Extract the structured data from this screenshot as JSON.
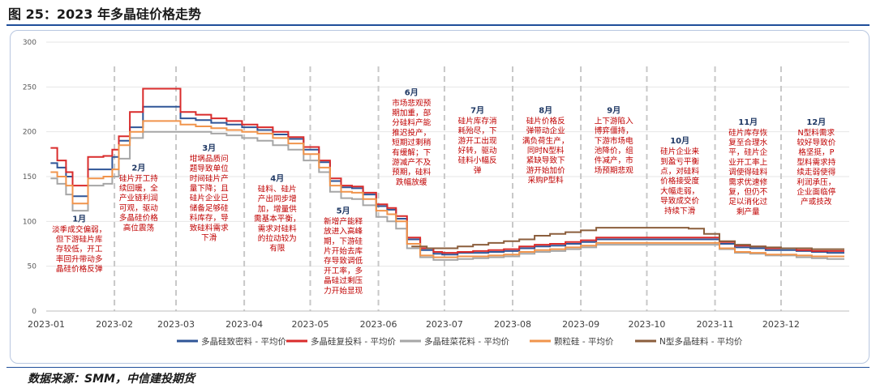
{
  "page_title": "图 25：2023 年多晶硅价格走势",
  "source": "数据来源：SMM，中信建投期货",
  "colors": {
    "dense": "#2f5597",
    "recharge": "#d92b2b",
    "cauliflower": "#a6a6a6",
    "granular": "#f0944c",
    "ntype": "#8b5e3c",
    "annotation_text": "#c00000",
    "month_label": "#1f3864",
    "title_rule": "#1f4e9a"
  },
  "chart_data": {
    "type": "line",
    "ylim": [
      0,
      300
    ],
    "yticks": [
      "0",
      "50",
      "100",
      "150",
      "200",
      "250",
      "300"
    ],
    "x_range": [
      "2023-01-01",
      "2024-01-01"
    ],
    "xticks": [
      {
        "date": "2023-01-01",
        "label": "2023-01"
      },
      {
        "date": "2023-02-01",
        "label": "2023-02"
      },
      {
        "date": "2023-03-01",
        "label": "2023-03"
      },
      {
        "date": "2023-04-01",
        "label": "2023-04"
      },
      {
        "date": "2023-05-01",
        "label": "2023-05"
      },
      {
        "date": "2023-06-01",
        "label": "2023-06"
      },
      {
        "date": "2023-07-01",
        "label": "2023-07"
      },
      {
        "date": "2023-08-01",
        "label": "2023-08"
      },
      {
        "date": "2023-09-01",
        "label": "2023-09"
      },
      {
        "date": "2023-10-01",
        "label": "2023-10"
      },
      {
        "date": "2023-11-01",
        "label": "2023-11"
      },
      {
        "date": "2023-12-01",
        "label": "2023-12"
      }
    ],
    "month_dividers": [
      "2023-02-01",
      "2023-03-01",
      "2023-04-01",
      "2023-05-01",
      "2023-06-01",
      "2023-07-01",
      "2023-08-01",
      "2023-09-01",
      "2023-10-01",
      "2023-11-01",
      "2023-12-01"
    ],
    "legend_position": "bottom",
    "series": [
      {
        "name": "多晶硅致密料 - 平均价",
        "key": "dense",
        "x": [
          "2023-01-03",
          "2023-01-06",
          "2023-01-10",
          "2023-01-13",
          "2023-01-17",
          "2023-01-20",
          "2023-01-27",
          "2023-01-31",
          "2023-02-03",
          "2023-02-08",
          "2023-02-14",
          "2023-02-20",
          "2023-02-24",
          "2023-03-03",
          "2023-03-10",
          "2023-03-17",
          "2023-03-24",
          "2023-03-31",
          "2023-04-07",
          "2023-04-14",
          "2023-04-21",
          "2023-04-28",
          "2023-05-05",
          "2023-05-10",
          "2023-05-15",
          "2023-05-20",
          "2023-05-25",
          "2023-05-31",
          "2023-06-05",
          "2023-06-09",
          "2023-06-14",
          "2023-06-20",
          "2023-06-26",
          "2023-06-30",
          "2023-07-07",
          "2023-07-14",
          "2023-07-21",
          "2023-07-28",
          "2023-08-04",
          "2023-08-11",
          "2023-08-18",
          "2023-08-25",
          "2023-09-01",
          "2023-09-08",
          "2023-09-15",
          "2023-09-22",
          "2023-10-06",
          "2023-10-13",
          "2023-10-20",
          "2023-10-27",
          "2023-11-03",
          "2023-11-10",
          "2023-11-17",
          "2023-11-24",
          "2023-12-01",
          "2023-12-08",
          "2023-12-15",
          "2023-12-22",
          "2023-12-29"
        ],
        "y": [
          165,
          160,
          150,
          128,
          128,
          158,
          158,
          172,
          190,
          205,
          228,
          228,
          228,
          215,
          213,
          210,
          208,
          205,
          202,
          197,
          192,
          180,
          166,
          145,
          138,
          137,
          130,
          117,
          113,
          103,
          80,
          68,
          64,
          63,
          65,
          65,
          66,
          67,
          70,
          72,
          73,
          75,
          77,
          80,
          80,
          80,
          80,
          80,
          80,
          80,
          75,
          71,
          70,
          68,
          68,
          67,
          66,
          65,
          65
        ]
      },
      {
        "name": "多晶硅复投料 - 平均价",
        "key": "recharge",
        "x": [
          "2023-01-03",
          "2023-01-06",
          "2023-01-10",
          "2023-01-13",
          "2023-01-17",
          "2023-01-20",
          "2023-01-27",
          "2023-01-31",
          "2023-02-03",
          "2023-02-08",
          "2023-02-14",
          "2023-02-20",
          "2023-02-24",
          "2023-03-03",
          "2023-03-10",
          "2023-03-17",
          "2023-03-24",
          "2023-03-31",
          "2023-04-07",
          "2023-04-14",
          "2023-04-21",
          "2023-04-28",
          "2023-05-05",
          "2023-05-10",
          "2023-05-15",
          "2023-05-20",
          "2023-05-25",
          "2023-05-31",
          "2023-06-05",
          "2023-06-09",
          "2023-06-14",
          "2023-06-20",
          "2023-06-26",
          "2023-06-30",
          "2023-07-07",
          "2023-07-14",
          "2023-07-21",
          "2023-07-28",
          "2023-08-04",
          "2023-08-11",
          "2023-08-18",
          "2023-08-25",
          "2023-09-01",
          "2023-09-08",
          "2023-09-15",
          "2023-09-22",
          "2023-10-06",
          "2023-10-13",
          "2023-10-20",
          "2023-10-27",
          "2023-11-03",
          "2023-11-10",
          "2023-11-17",
          "2023-11-24",
          "2023-12-01",
          "2023-12-08",
          "2023-12-15",
          "2023-12-22",
          "2023-12-29"
        ],
        "y": [
          182,
          168,
          155,
          140,
          140,
          172,
          173,
          180,
          195,
          222,
          248,
          248,
          248,
          222,
          219,
          215,
          212,
          208,
          205,
          200,
          194,
          183,
          168,
          148,
          140,
          139,
          132,
          119,
          115,
          106,
          82,
          70,
          66,
          65,
          66,
          67,
          68,
          69,
          72,
          74,
          75,
          77,
          79,
          82,
          82,
          82,
          82,
          82,
          82,
          82,
          77,
          73,
          72,
          70,
          70,
          68,
          67,
          67,
          67
        ]
      },
      {
        "name": "多晶硅菜花料 - 平均价",
        "key": "cauliflower",
        "x": [
          "2023-01-03",
          "2023-01-06",
          "2023-01-10",
          "2023-01-13",
          "2023-01-17",
          "2023-01-20",
          "2023-01-27",
          "2023-01-31",
          "2023-02-03",
          "2023-02-08",
          "2023-02-14",
          "2023-02-20",
          "2023-02-24",
          "2023-03-03",
          "2023-03-10",
          "2023-03-17",
          "2023-03-24",
          "2023-03-31",
          "2023-04-07",
          "2023-04-14",
          "2023-04-21",
          "2023-04-28",
          "2023-05-05",
          "2023-05-10",
          "2023-05-15",
          "2023-05-20",
          "2023-05-25",
          "2023-05-31",
          "2023-06-05",
          "2023-06-09",
          "2023-06-14",
          "2023-06-20",
          "2023-06-26",
          "2023-06-30",
          "2023-07-07",
          "2023-07-14",
          "2023-07-21",
          "2023-07-28",
          "2023-08-04",
          "2023-08-11",
          "2023-08-18",
          "2023-08-25",
          "2023-09-01",
          "2023-09-08",
          "2023-09-15",
          "2023-09-22",
          "2023-10-06",
          "2023-10-13",
          "2023-10-20",
          "2023-10-27",
          "2023-11-03",
          "2023-11-10",
          "2023-11-17",
          "2023-11-24",
          "2023-12-01",
          "2023-12-08",
          "2023-12-15",
          "2023-12-22",
          "2023-12-29"
        ],
        "y": [
          148,
          142,
          130,
          112,
          112,
          140,
          142,
          150,
          170,
          193,
          200,
          200,
          200,
          200,
          200,
          198,
          196,
          193,
          190,
          185,
          180,
          168,
          155,
          133,
          126,
          125,
          118,
          105,
          100,
          92,
          70,
          60,
          57,
          57,
          58,
          59,
          60,
          61,
          64,
          66,
          67,
          69,
          71,
          74,
          74,
          74,
          74,
          74,
          74,
          74,
          69,
          65,
          64,
          62,
          62,
          60,
          59,
          58,
          58
        ]
      },
      {
        "name": "颗粒硅 - 平均价",
        "key": "granular",
        "x": [
          "2023-01-03",
          "2023-01-06",
          "2023-01-10",
          "2023-01-13",
          "2023-01-17",
          "2023-01-20",
          "2023-01-27",
          "2023-01-31",
          "2023-02-03",
          "2023-02-08",
          "2023-02-14",
          "2023-02-20",
          "2023-02-24",
          "2023-03-03",
          "2023-03-10",
          "2023-03-17",
          "2023-03-24",
          "2023-03-31",
          "2023-04-07",
          "2023-04-14",
          "2023-04-21",
          "2023-04-28",
          "2023-05-05",
          "2023-05-10",
          "2023-05-15",
          "2023-05-20",
          "2023-05-25",
          "2023-05-31",
          "2023-06-05",
          "2023-06-09",
          "2023-06-14",
          "2023-06-20",
          "2023-06-26",
          "2023-06-30",
          "2023-07-07",
          "2023-07-14",
          "2023-07-21",
          "2023-07-28",
          "2023-08-04",
          "2023-08-11",
          "2023-08-18",
          "2023-08-25",
          "2023-09-01",
          "2023-09-08",
          "2023-09-15",
          "2023-09-22",
          "2023-10-06",
          "2023-10-13",
          "2023-10-20",
          "2023-10-27",
          "2023-11-03",
          "2023-11-10",
          "2023-11-17",
          "2023-11-24",
          "2023-12-01",
          "2023-12-08",
          "2023-12-15",
          "2023-12-22",
          "2023-12-29"
        ],
        "y": [
          155,
          150,
          140,
          120,
          120,
          148,
          150,
          158,
          185,
          200,
          212,
          212,
          212,
          208,
          206,
          204,
          202,
          200,
          198,
          193,
          187,
          175,
          160,
          140,
          133,
          132,
          125,
          112,
          108,
          100,
          75,
          62,
          60,
          60,
          61,
          61,
          62,
          63,
          66,
          68,
          69,
          71,
          73,
          76,
          76,
          76,
          76,
          76,
          76,
          76,
          70,
          66,
          65,
          63,
          63,
          62,
          61,
          61,
          61
        ]
      },
      {
        "name": "N型多晶硅料 - 平均价",
        "key": "ntype",
        "x": [
          "2023-06-16",
          "2023-06-23",
          "2023-06-30",
          "2023-07-07",
          "2023-07-14",
          "2023-07-21",
          "2023-07-28",
          "2023-08-04",
          "2023-08-11",
          "2023-08-18",
          "2023-08-25",
          "2023-09-01",
          "2023-09-08",
          "2023-09-15",
          "2023-09-22",
          "2023-09-29",
          "2023-10-06",
          "2023-10-13",
          "2023-10-20",
          "2023-10-27",
          "2023-11-03",
          "2023-11-10",
          "2023-11-17",
          "2023-11-24",
          "2023-12-01",
          "2023-12-08",
          "2023-12-15",
          "2023-12-22",
          "2023-12-29"
        ],
        "y": [
          72,
          70,
          70,
          72,
          74,
          76,
          78,
          80,
          84,
          86,
          88,
          90,
          93,
          93,
          93,
          93,
          93,
          93,
          92,
          86,
          78,
          74,
          72,
          71,
          70,
          70,
          69,
          69,
          69
        ]
      }
    ],
    "annotations": [
      {
        "month": "1月",
        "text": [
          "淡季成交偏弱，",
          "但下游硅片库",
          "存较低，开工",
          "率回升带动多",
          "晶硅价格反弹"
        ],
        "date": "2023-01-16",
        "y": 100
      },
      {
        "month": "2月",
        "text": [
          "硅片开工持",
          "续回暖，全",
          "产业链利润",
          "可观，驱动",
          "多晶硅价格",
          "高位震荡"
        ],
        "date": "2023-02-12",
        "y": 157
      },
      {
        "month": "3月",
        "text": [
          "坩埚品质问",
          "题导致单位",
          "时间硅片产",
          "量下降；且",
          "硅片企业已",
          "储备足够硅",
          "料库存，导",
          "致硅料需求",
          "下滑"
        ],
        "date": "2023-03-16",
        "y": 179
      },
      {
        "month": "4月",
        "text": [
          "硅料、硅片",
          "产出同步增",
          "加，增量供",
          "需基本平衡，",
          "需求对硅料",
          "的拉动较为",
          "有限"
        ],
        "date": "2023-04-16",
        "y": 145
      },
      {
        "month": "5月",
        "text": [
          "新增产能释",
          "放进入高峰",
          "期，下游硅",
          "片开始去库",
          "存导致调低",
          "开工率，多",
          "晶硅过剩压",
          "力开始显现"
        ],
        "date": "2023-05-16",
        "y": 109
      },
      {
        "month": "6月",
        "text": [
          "市场悲观预",
          "期加重，部",
          "分硅料产能",
          "推迟投产，",
          "短期过剩稍",
          "有缓解；下",
          "游减产不及",
          "预期，硅料",
          "跌幅放缓"
        ],
        "date": "2023-06-16",
        "y": 241
      },
      {
        "month": "7月",
        "text": [
          "硅片库存消",
          "耗殆尽，下",
          "游开工出现",
          "好转，驱动",
          "硅料小幅反",
          "弹"
        ],
        "date": "2023-07-16",
        "y": 221
      },
      {
        "month": "8月",
        "text": [
          "硅片价格反",
          "弹带动企业",
          "满负荷生产，",
          "同时N型料",
          "紧缺导致下",
          "游开始加价",
          "采购P型料"
        ],
        "date": "2023-08-16",
        "y": 221
      },
      {
        "month": "9月",
        "text": [
          "上下游陷入",
          "博弈僵持，",
          "下游市场电",
          "池降价，组",
          "件减产，市",
          "场预期悲观"
        ],
        "date": "2023-09-16",
        "y": 221
      },
      {
        "month": "10月",
        "text": [
          "硅片企业来",
          "到盈亏平衡",
          "点，对硅料",
          "价格接受度",
          "大幅走弱，",
          "导致成交价",
          "持续下滑"
        ],
        "date": "2023-10-16",
        "y": 187
      },
      {
        "month": "11月",
        "text": [
          "硅片库存恢",
          "复至合理水",
          "平，硅片企",
          "业开工率上",
          "调使得硅料",
          "需求优速修",
          "复，但仍不",
          "足以消化过",
          "剩产量"
        ],
        "date": "2023-11-16",
        "y": 208
      },
      {
        "month": "12月",
        "text": [
          "N型料需求",
          "较好导致价",
          "格坚挺，P",
          "型料需求持",
          "续走弱使得",
          "利润承压，",
          "企业面临停",
          "产或技改"
        ],
        "date": "2023-12-17",
        "y": 208
      }
    ]
  }
}
